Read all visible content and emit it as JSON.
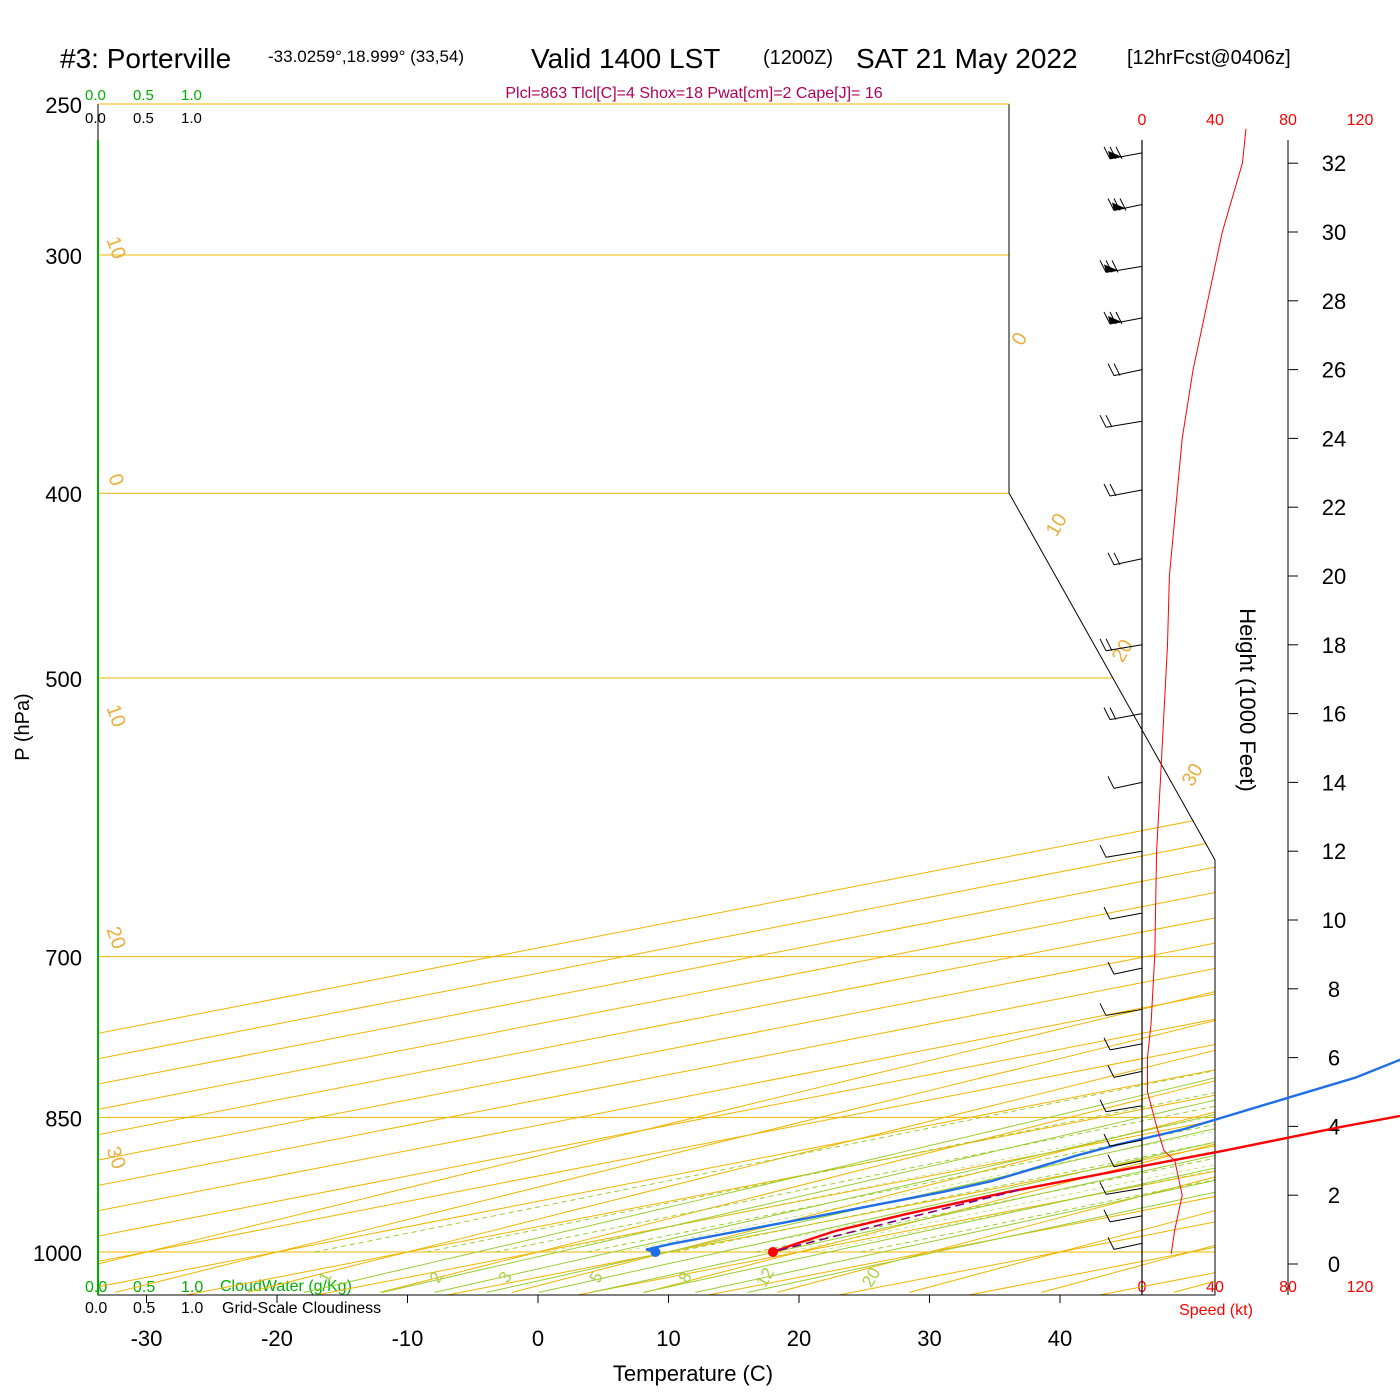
{
  "header": {
    "station": "#3: Porterville",
    "coords": "-33.0259°,18.999° (33,54)",
    "valid": "Valid 1400 LST",
    "utc": "(1200Z)",
    "date": "SAT 21 May 2022",
    "forecast": "[12hrFcst@0406z]"
  },
  "params_line": "Plcl=863 Tlcl[C]=4 Shox=18 Pwat[cm]=2 Cape[J]= 16",
  "colors": {
    "temperature": "#ff0000",
    "dewpoint": "#1e6fe8",
    "isotherm": "#f0b400",
    "moist_adiabat": "#9acd32",
    "mixing_ratio": "#9acd32",
    "cloud_green": "#00b000",
    "param_text": "#b0005a",
    "wind_text": "#ff0000",
    "parcel": "#800080"
  },
  "cloud_scale": {
    "green_ticks": [
      "0.0",
      "0.5",
      "1.0"
    ],
    "black_ticks": [
      "0.0",
      "0.5",
      "1.0"
    ],
    "green_label": "CloudWater (g/Kg)",
    "black_label": "Grid-Scale Cloudiness"
  },
  "wind_scale": {
    "ticks": [
      "0",
      "40",
      "80",
      "120"
    ],
    "label": "Speed (kt)"
  },
  "chart_data": {
    "type": "line",
    "subtype": "skew-T log-p sounding",
    "xlabel": "Temperature (C)",
    "ylabel": "P (hPa)",
    "right_ylabel": "Height (1000 Feet)",
    "x_ticks": [
      -30,
      -20,
      -10,
      0,
      10,
      20,
      30,
      40
    ],
    "y_ticks": [
      250,
      300,
      400,
      500,
      700,
      850,
      1000
    ],
    "height_ticks": [
      0,
      2,
      4,
      6,
      8,
      10,
      12,
      14,
      16,
      18,
      20,
      22,
      24,
      26,
      28,
      30,
      32
    ],
    "isotherm_labels": [
      {
        "t": -30,
        "label": "30"
      },
      {
        "t": -20,
        "label": "20"
      },
      {
        "t": -10,
        "label": "10"
      },
      {
        "t": 0,
        "label": "0"
      },
      {
        "t": 10,
        "label": "10"
      },
      {
        "t": 0,
        "label": "0"
      },
      {
        "t": 10,
        "label": "10"
      },
      {
        "t": 20,
        "label": "20"
      },
      {
        "t": 30,
        "label": "30"
      }
    ],
    "mixing_ratio_labels": [
      "1",
      "2",
      "3",
      "5",
      "8",
      "12",
      "20"
    ],
    "series": [
      {
        "name": "temperature",
        "points": [
          [
            18.0,
            1000
          ],
          [
            16.5,
            990
          ],
          [
            14.5,
            975
          ],
          [
            13.2,
            955
          ],
          [
            12.3,
            930
          ],
          [
            12.4,
            905
          ],
          [
            12.6,
            885
          ],
          [
            12.2,
            860
          ],
          [
            12.6,
            830
          ],
          [
            13.3,
            795
          ],
          [
            14.8,
            760
          ],
          [
            16.1,
            725
          ],
          [
            16.4,
            700
          ],
          [
            16.2,
            670
          ],
          [
            15.2,
            630
          ],
          [
            13.8,
            575
          ],
          [
            13.1,
            510
          ],
          [
            10.6,
            460
          ],
          [
            8.4,
            425
          ],
          [
            3.4,
            370
          ],
          [
            0.5,
            330
          ],
          [
            -2.2,
            300
          ],
          [
            -5.3,
            275
          ],
          [
            -7.4,
            259
          ]
        ]
      },
      {
        "name": "dewpoint",
        "points": [
          [
            9.0,
            1000
          ],
          [
            7.3,
            997
          ],
          [
            7.0,
            990
          ],
          [
            7.3,
            960
          ],
          [
            7.3,
            930
          ],
          [
            6.8,
            918
          ],
          [
            5.4,
            907
          ],
          [
            3.2,
            890
          ],
          [
            2.0,
            878
          ],
          [
            1.0,
            862
          ],
          [
            -3.4,
            830
          ],
          [
            -6.2,
            810
          ],
          [
            -10.4,
            790
          ],
          [
            -15.2,
            770
          ],
          [
            -10.5,
            750
          ],
          [
            -4.0,
            733
          ],
          [
            0.0,
            720
          ],
          [
            3.0,
            690
          ],
          [
            5.3,
            660
          ],
          [
            5.8,
            640
          ],
          [
            5.7,
            610
          ],
          [
            4.6,
            560
          ],
          [
            2.8,
            505
          ],
          [
            2.6,
            485
          ],
          [
            1.8,
            460
          ],
          [
            0.7,
            435
          ],
          [
            -0.2,
            410
          ],
          [
            -1.2,
            390
          ],
          [
            -2.5,
            350
          ],
          [
            -3.4,
            330
          ],
          [
            -4.6,
            300
          ],
          [
            -8.0,
            259
          ]
        ]
      },
      {
        "name": "parcel",
        "points": [
          [
            17.8,
            998
          ],
          [
            12.4,
            928
          ]
        ]
      }
    ],
    "wind_speed_kt": [
      [
        0.3,
        16
      ],
      [
        1.0,
        18
      ],
      [
        2.0,
        22
      ],
      [
        3.0,
        18
      ],
      [
        3.3,
        12
      ],
      [
        4.0,
        8
      ],
      [
        5.0,
        3
      ],
      [
        6.0,
        3
      ],
      [
        7.0,
        5
      ],
      [
        9.0,
        7
      ],
      [
        12.0,
        8
      ],
      [
        14.0,
        10
      ],
      [
        16.0,
        12
      ],
      [
        18.0,
        14
      ],
      [
        20.0,
        15
      ],
      [
        24.0,
        22
      ],
      [
        26.0,
        28
      ],
      [
        28.0,
        36
      ],
      [
        30.0,
        44
      ],
      [
        32.0,
        55
      ],
      [
        33.0,
        57
      ]
    ],
    "grid": true,
    "xlim": [
      -34,
      52
    ],
    "ylim": [
      250,
      1050
    ]
  }
}
